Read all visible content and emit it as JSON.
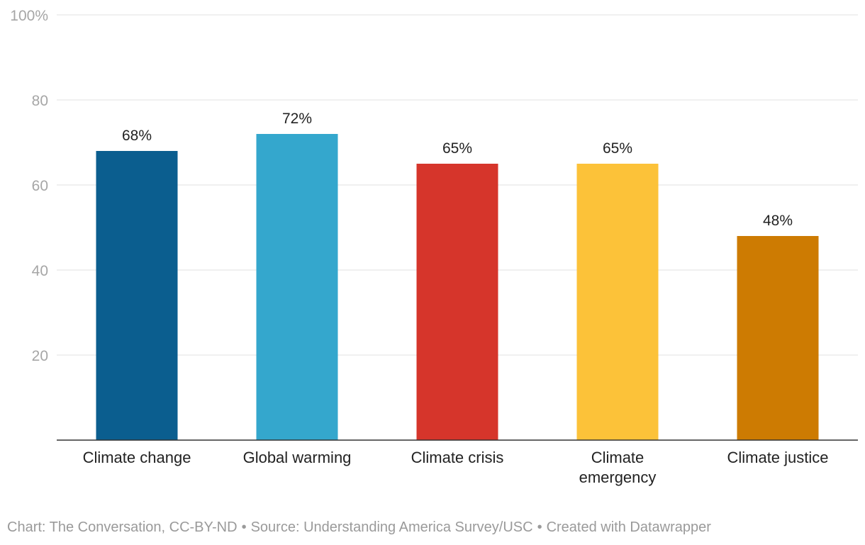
{
  "chart_data": {
    "type": "bar",
    "categories": [
      "Climate change",
      "Global warming",
      "Climate crisis",
      "Climate emergency",
      "Climate justice"
    ],
    "category_lines": [
      [
        "Climate change"
      ],
      [
        "Global warming"
      ],
      [
        "Climate crisis"
      ],
      [
        "Climate",
        "emergency"
      ],
      [
        "Climate justice"
      ]
    ],
    "values": [
      68,
      72,
      65,
      65,
      48
    ],
    "value_labels": [
      "68%",
      "72%",
      "65%",
      "65%",
      "48%"
    ],
    "colors": [
      "#0b5e8f",
      "#34a7cd",
      "#d6352b",
      "#fcc239",
      "#cd7b02"
    ],
    "ylim": [
      0,
      100
    ],
    "yticks": [
      20,
      40,
      60,
      80,
      100
    ],
    "ytick_labels": [
      "20",
      "40",
      "60",
      "80",
      "100%"
    ],
    "grid": true,
    "title": "",
    "xlabel": "",
    "ylabel": ""
  },
  "footer": {
    "chart_credit": "Chart: The Conversation, CC-BY-ND",
    "separator": "•",
    "source": "Source: Understanding America Survey/USC",
    "created_with": "Created with Datawrapper"
  }
}
